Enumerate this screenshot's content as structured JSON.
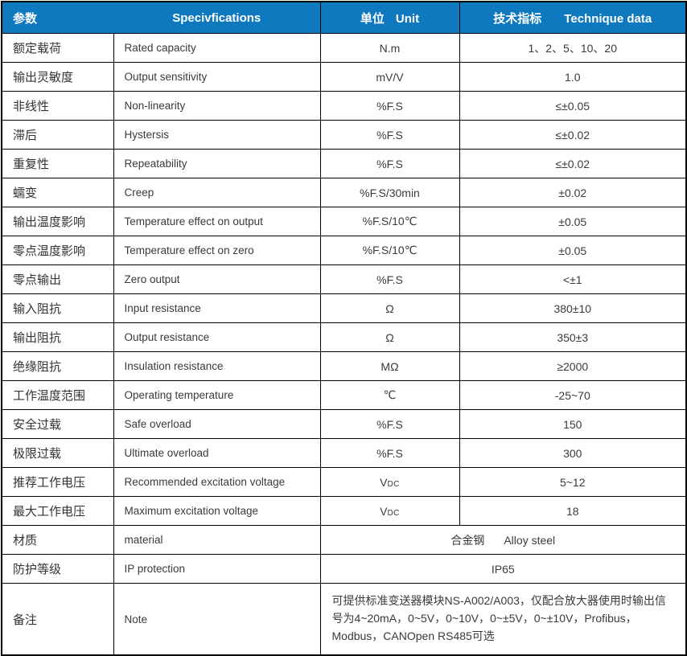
{
  "colors": {
    "header_bg": "#0E79BF",
    "header_text": "#FFFFFF",
    "body_text": "#3A3A3A",
    "border": "#000000"
  },
  "header": {
    "param": "参数",
    "spec": "Specivfications",
    "unit_cn": "单位",
    "unit_en": "Unit",
    "tech_cn": "技术指标",
    "tech_en": "Technique data"
  },
  "rows": [
    {
      "param": "额定载荷",
      "spec": "Rated capacity",
      "unit": "N.m",
      "value": "1、2、5、10、20"
    },
    {
      "param": "输出灵敏度",
      "spec": "Output sensitivity",
      "unit": "mV/V",
      "value": "1.0"
    },
    {
      "param": "非线性",
      "spec": "Non-linearity",
      "unit": "%F.S",
      "value": "≤±0.05"
    },
    {
      "param": "滞后",
      "spec": "Hystersis",
      "unit": "%F.S",
      "value": "≤±0.02"
    },
    {
      "param": "重复性",
      "spec": "Repeatability",
      "unit": "%F.S",
      "value": "≤±0.02"
    },
    {
      "param": "蠕变",
      "spec": "Creep",
      "unit": "%F.S/30min",
      "value": "±0.02"
    },
    {
      "param": "输出温度影响",
      "spec": "Temperature effect on output",
      "unit": "%F.S/10℃",
      "value": "±0.05"
    },
    {
      "param": "零点温度影响",
      "spec": "Temperature effect on zero",
      "unit": "%F.S/10℃",
      "value": "±0.05"
    },
    {
      "param": "零点输出",
      "spec": "Zero output",
      "unit": "%F.S",
      "value": "<±1"
    },
    {
      "param": "输入阻抗",
      "spec": "Input resistance",
      "unit": "Ω",
      "value": "380±10"
    },
    {
      "param": "输出阻抗",
      "spec": "Output resistance",
      "unit": "Ω",
      "value": "350±3"
    },
    {
      "param": "绝缘阻抗",
      "spec": "Insulation resistance",
      "unit": "MΩ",
      "value": "≥2000"
    },
    {
      "param": "工作温度范围",
      "spec": "Operating temperature",
      "unit": "℃",
      "value": "-25~70"
    },
    {
      "param": "安全过载",
      "spec": "Safe overload",
      "unit": "%F.S",
      "value": "150"
    },
    {
      "param": "极限过载",
      "spec": "Ultimate overload",
      "unit": "%F.S",
      "value": "300"
    },
    {
      "param": "推荐工作电压",
      "spec": "Recommended excitation voltage",
      "unit": "V",
      "unit_sub": "DC",
      "value": "5~12"
    },
    {
      "param": "最大工作电压",
      "spec": "Maximum excitation voltage",
      "unit": "V",
      "unit_sub": "DC",
      "value": "18"
    },
    {
      "param": "材质",
      "spec": "material",
      "value_cn": "合金钢",
      "value_en": "Alloy steel"
    },
    {
      "param": "防护等级",
      "spec": "IP protection",
      "value": "IP65"
    },
    {
      "param": "备注",
      "spec": "Note",
      "value": "可提供标准变送器模块NS-A002/A003，仅配合放大器使用时输出信号为4~20mA，0~5V，0~10V，0~±5V，0~±10V，Profibus，Modbus，CANOpen RS485可选"
    }
  ]
}
